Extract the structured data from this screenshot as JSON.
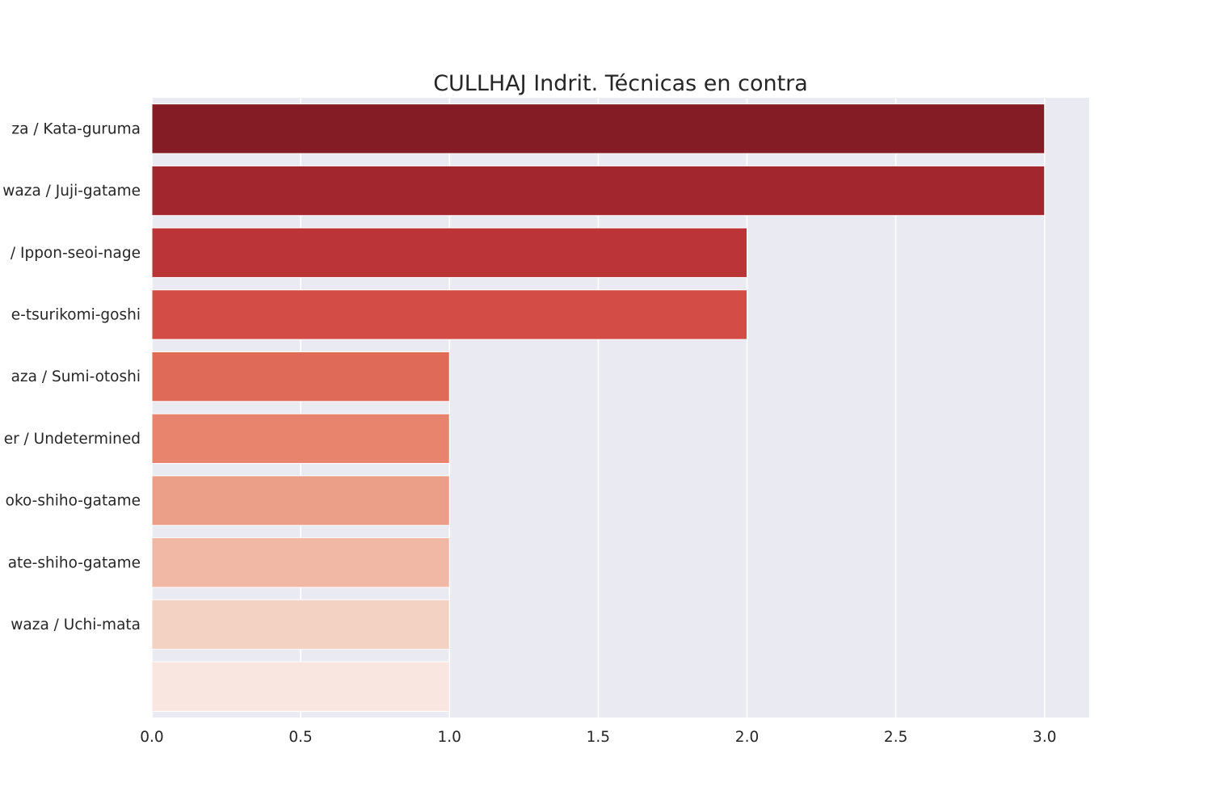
{
  "chart_data": {
    "type": "bar",
    "orientation": "horizontal",
    "title": "CULLHAJ Indrit. Técnicas en contra",
    "xlabel": "",
    "ylabel": "",
    "xlim": [
      0,
      3.15
    ],
    "x_ticks": [
      "0.0",
      "0.5",
      "1.0",
      "1.5",
      "2.0",
      "2.5",
      "3.0"
    ],
    "grid": true,
    "categories": [
      "za / Kata-guruma",
      "waza / Juji-gatame",
      "/ Ippon-seoi-nage",
      "e-tsurikomi-goshi",
      "aza / Sumi-otoshi",
      "er / Undetermined",
      "oko-shiho-gatame",
      "ate-shiho-gatame",
      "waza / Uchi-mata",
      ""
    ],
    "values": [
      3,
      3,
      2,
      2,
      1,
      1,
      1,
      1,
      1,
      1
    ],
    "colors": [
      "#831c24",
      "#a1262e",
      "#ba3438",
      "#d34c45",
      "#e06a58",
      "#e8846e",
      "#eb9f88",
      "#f0b8a5",
      "#f3d2c4",
      "#f9e6e0"
    ],
    "background": "#eaeaf2",
    "grid_color": "#ffffff"
  }
}
